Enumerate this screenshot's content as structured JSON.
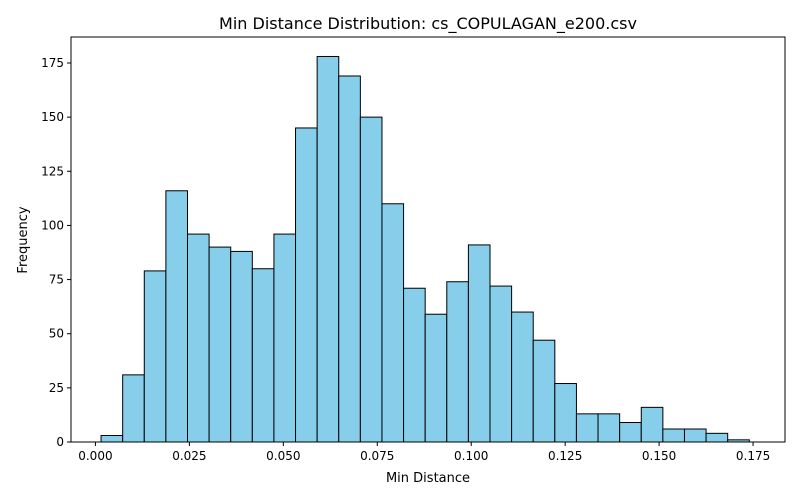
{
  "chart_data": {
    "type": "bar",
    "subtype": "histogram",
    "title": "Min Distance Distribution: cs_COPULAGAN_e200.csv",
    "xlabel": "Min Distance",
    "ylabel": "Frequency",
    "bin_start": 0.0015,
    "bin_width": 0.00575,
    "values": [
      3,
      31,
      79,
      116,
      96,
      90,
      88,
      80,
      96,
      145,
      178,
      169,
      150,
      110,
      71,
      59,
      74,
      91,
      72,
      60,
      47,
      27,
      13,
      13,
      9,
      16,
      6,
      6,
      4,
      1
    ],
    "xlim": [
      -0.0065,
      0.1835
    ],
    "ylim": [
      0,
      187
    ],
    "xticks": [
      0.0,
      0.025,
      0.05,
      0.075,
      0.1,
      0.125,
      0.15,
      0.175
    ],
    "xtick_labels": [
      "0.000",
      "0.025",
      "0.050",
      "0.075",
      "0.100",
      "0.125",
      "0.150",
      "0.175"
    ],
    "yticks": [
      0,
      25,
      50,
      75,
      100,
      125,
      150,
      175
    ],
    "ytick_labels": [
      "0",
      "25",
      "50",
      "75",
      "100",
      "125",
      "150",
      "175"
    ],
    "grid": false,
    "colors": {
      "bar_fill": "#87ceeb",
      "bar_edge": "#000000"
    }
  }
}
